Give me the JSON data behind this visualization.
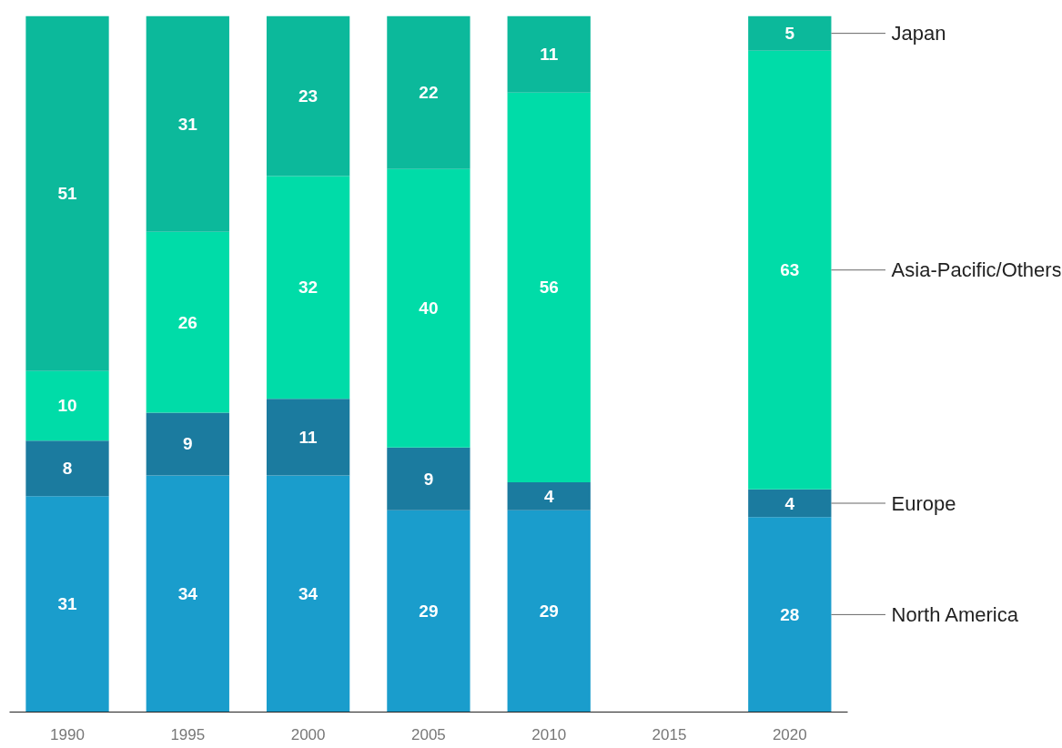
{
  "chart_data": {
    "type": "bar",
    "stacked": true,
    "categories": [
      "1990",
      "1995",
      "2000",
      "2005",
      "2010",
      "2015",
      "2020"
    ],
    "series": [
      {
        "name": "North America",
        "color": "#1a9dcc",
        "values": [
          31,
          34,
          34,
          29,
          29,
          null,
          28
        ]
      },
      {
        "name": "Europe",
        "color": "#1b7b9f",
        "values": [
          8,
          9,
          11,
          9,
          4,
          null,
          4
        ]
      },
      {
        "name": "Asia-Pacific/Others",
        "color": "#00dca8",
        "values": [
          10,
          26,
          32,
          40,
          56,
          null,
          63
        ]
      },
      {
        "name": "Japan",
        "color": "#0cb99b",
        "values": [
          51,
          31,
          23,
          22,
          11,
          null,
          5
        ]
      }
    ],
    "data_labels": true,
    "legend": false,
    "grid": false
  }
}
